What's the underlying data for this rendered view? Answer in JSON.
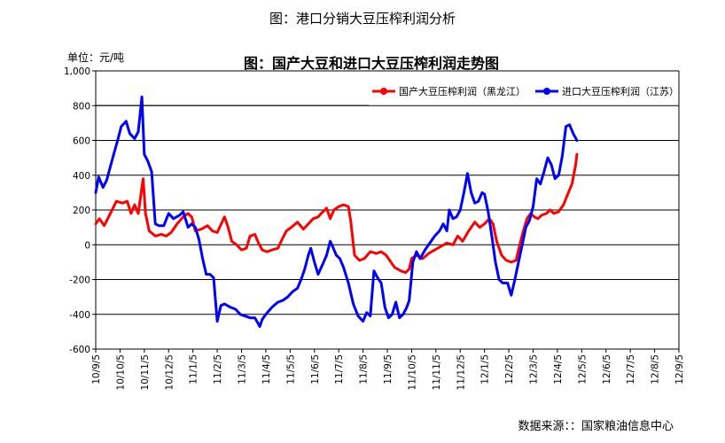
{
  "figure_title": "图：港口分销大豆压榨利润分析",
  "unit_label": "单位：元/吨",
  "source_note": "数据来源：：国家粮油信息中心",
  "chart_data": {
    "type": "line",
    "title": "图：国产大豆和进口大豆压榨利润走势图",
    "ylim": [
      -600,
      1000
    ],
    "yticks": [
      -600,
      -400,
      -200,
      0,
      200,
      400,
      600,
      800,
      1000
    ],
    "ytick_labels": [
      "-600",
      "-400",
      "-200",
      "0",
      "200",
      "400",
      "600",
      "800",
      "1,000"
    ],
    "x_tick_labels": [
      "10/9/5",
      "10/10/5",
      "10/11/5",
      "10/12/5",
      "11/1/5",
      "11/2/5",
      "11/3/5",
      "11/4/5",
      "11/5/5",
      "11/6/5",
      "11/7/5",
      "11/8/5",
      "11/9/5",
      "11/10/5",
      "11/11/5",
      "11/12/5",
      "12/1/5",
      "12/2/5",
      "12/3/5",
      "12/4/5",
      "12/5/5",
      "12/6/5",
      "12/7/5",
      "12/8/5",
      "12/9/5"
    ],
    "grid": true,
    "legend_position": "top-right",
    "series": [
      {
        "name": "国产大豆压榨利润（黑龙江）",
        "color": "#ff0000",
        "values": [
          [
            0,
            120
          ],
          [
            0.15,
            150
          ],
          [
            0.35,
            110
          ],
          [
            0.6,
            180
          ],
          [
            0.85,
            250
          ],
          [
            1.1,
            240
          ],
          [
            1.3,
            250
          ],
          [
            1.45,
            180
          ],
          [
            1.6,
            230
          ],
          [
            1.75,
            180
          ],
          [
            1.95,
            380
          ],
          [
            2.05,
            180
          ],
          [
            2.2,
            80
          ],
          [
            2.45,
            50
          ],
          [
            2.7,
            60
          ],
          [
            2.9,
            50
          ],
          [
            3.1,
            70
          ],
          [
            3.35,
            120
          ],
          [
            3.6,
            160
          ],
          [
            3.8,
            180
          ],
          [
            3.95,
            160
          ],
          [
            4.1,
            80
          ],
          [
            4.35,
            90
          ],
          [
            4.6,
            110
          ],
          [
            4.8,
            80
          ],
          [
            5.0,
            70
          ],
          [
            5.1,
            100
          ],
          [
            5.3,
            160
          ],
          [
            5.45,
            100
          ],
          [
            5.6,
            20
          ],
          [
            5.8,
            0
          ],
          [
            6.0,
            -30
          ],
          [
            6.2,
            -20
          ],
          [
            6.35,
            50
          ],
          [
            6.55,
            60
          ],
          [
            6.7,
            10
          ],
          [
            6.85,
            -30
          ],
          [
            7.05,
            -40
          ],
          [
            7.25,
            -30
          ],
          [
            7.5,
            -20
          ],
          [
            7.7,
            40
          ],
          [
            7.85,
            80
          ],
          [
            8.05,
            100
          ],
          [
            8.3,
            130
          ],
          [
            8.55,
            90
          ],
          [
            8.75,
            120
          ],
          [
            8.95,
            150
          ],
          [
            9.15,
            160
          ],
          [
            9.35,
            190
          ],
          [
            9.5,
            210
          ],
          [
            9.65,
            150
          ],
          [
            9.8,
            200
          ],
          [
            10.0,
            220
          ],
          [
            10.2,
            230
          ],
          [
            10.4,
            220
          ],
          [
            10.5,
            130
          ],
          [
            10.65,
            -60
          ],
          [
            10.85,
            -90
          ],
          [
            11.05,
            -80
          ],
          [
            11.3,
            -40
          ],
          [
            11.55,
            -50
          ],
          [
            11.75,
            -40
          ],
          [
            11.95,
            -60
          ],
          [
            12.1,
            -90
          ],
          [
            12.3,
            -130
          ],
          [
            12.55,
            -150
          ],
          [
            12.75,
            -160
          ],
          [
            12.9,
            -140
          ],
          [
            13.0,
            -80
          ],
          [
            13.2,
            -60
          ],
          [
            13.45,
            -80
          ],
          [
            13.7,
            -50
          ],
          [
            13.95,
            -30
          ],
          [
            14.2,
            -10
          ],
          [
            14.45,
            10
          ],
          [
            14.7,
            0
          ],
          [
            14.9,
            50
          ],
          [
            15.1,
            20
          ],
          [
            15.35,
            80
          ],
          [
            15.6,
            130
          ],
          [
            15.8,
            100
          ],
          [
            16.0,
            120
          ],
          [
            16.2,
            150
          ],
          [
            16.35,
            120
          ],
          [
            16.5,
            20
          ],
          [
            16.7,
            -60
          ],
          [
            16.9,
            -90
          ],
          [
            17.1,
            -100
          ],
          [
            17.3,
            -90
          ],
          [
            17.45,
            0
          ],
          [
            17.6,
            80
          ],
          [
            17.75,
            150
          ],
          [
            17.9,
            180
          ],
          [
            18.05,
            160
          ],
          [
            18.2,
            150
          ],
          [
            18.35,
            170
          ],
          [
            18.55,
            180
          ],
          [
            18.7,
            200
          ],
          [
            18.85,
            180
          ],
          [
            19.05,
            190
          ],
          [
            19.25,
            230
          ],
          [
            19.45,
            300
          ],
          [
            19.6,
            350
          ],
          [
            19.75,
            460
          ],
          [
            19.8,
            520
          ]
        ]
      },
      {
        "name": "进口大豆压榨利润（江苏）",
        "color": "#0000ff",
        "values": [
          [
            0,
            300
          ],
          [
            0.12,
            390
          ],
          [
            0.3,
            330
          ],
          [
            0.45,
            370
          ],
          [
            0.7,
            500
          ],
          [
            0.9,
            600
          ],
          [
            1.05,
            680
          ],
          [
            1.25,
            710
          ],
          [
            1.4,
            640
          ],
          [
            1.6,
            610
          ],
          [
            1.75,
            650
          ],
          [
            1.9,
            850
          ],
          [
            2.0,
            520
          ],
          [
            2.15,
            480
          ],
          [
            2.3,
            420
          ],
          [
            2.45,
            120
          ],
          [
            2.6,
            110
          ],
          [
            2.8,
            110
          ],
          [
            3.0,
            180
          ],
          [
            3.2,
            150
          ],
          [
            3.45,
            170
          ],
          [
            3.6,
            190
          ],
          [
            3.8,
            100
          ],
          [
            3.95,
            120
          ],
          [
            4.1,
            100
          ],
          [
            4.25,
            30
          ],
          [
            4.4,
            -80
          ],
          [
            4.55,
            -170
          ],
          [
            4.7,
            -170
          ],
          [
            4.85,
            -190
          ],
          [
            5.0,
            -440
          ],
          [
            5.15,
            -350
          ],
          [
            5.3,
            -340
          ],
          [
            5.55,
            -360
          ],
          [
            5.75,
            -370
          ],
          [
            5.95,
            -400
          ],
          [
            6.15,
            -410
          ],
          [
            6.35,
            -420
          ],
          [
            6.55,
            -420
          ],
          [
            6.75,
            -470
          ],
          [
            6.85,
            -430
          ],
          [
            7.0,
            -400
          ],
          [
            7.25,
            -360
          ],
          [
            7.5,
            -330
          ],
          [
            7.7,
            -320
          ],
          [
            7.9,
            -300
          ],
          [
            8.1,
            -270
          ],
          [
            8.3,
            -250
          ],
          [
            8.45,
            -200
          ],
          [
            8.6,
            -140
          ],
          [
            8.75,
            -60
          ],
          [
            8.85,
            -20
          ],
          [
            9.0,
            -100
          ],
          [
            9.15,
            -170
          ],
          [
            9.35,
            -110
          ],
          [
            9.5,
            -60
          ],
          [
            9.65,
            20
          ],
          [
            9.75,
            -10
          ],
          [
            9.9,
            -60
          ],
          [
            10.05,
            -80
          ],
          [
            10.2,
            -130
          ],
          [
            10.4,
            -220
          ],
          [
            10.6,
            -340
          ],
          [
            10.8,
            -410
          ],
          [
            11.0,
            -440
          ],
          [
            11.15,
            -390
          ],
          [
            11.3,
            -410
          ],
          [
            11.45,
            -150
          ],
          [
            11.6,
            -190
          ],
          [
            11.75,
            -220
          ],
          [
            11.9,
            -360
          ],
          [
            12.05,
            -420
          ],
          [
            12.2,
            -400
          ],
          [
            12.35,
            -330
          ],
          [
            12.5,
            -420
          ],
          [
            12.65,
            -400
          ],
          [
            12.8,
            -360
          ],
          [
            12.9,
            -320
          ],
          [
            13.05,
            -100
          ],
          [
            13.2,
            -40
          ],
          [
            13.35,
            -80
          ],
          [
            13.55,
            -30
          ],
          [
            13.75,
            10
          ],
          [
            13.95,
            50
          ],
          [
            14.15,
            80
          ],
          [
            14.3,
            120
          ],
          [
            14.45,
            80
          ],
          [
            14.55,
            200
          ],
          [
            14.7,
            150
          ],
          [
            14.85,
            160
          ],
          [
            15.0,
            200
          ],
          [
            15.15,
            300
          ],
          [
            15.3,
            410
          ],
          [
            15.45,
            300
          ],
          [
            15.6,
            240
          ],
          [
            15.75,
            250
          ],
          [
            15.9,
            300
          ],
          [
            16.0,
            290
          ],
          [
            16.15,
            190
          ],
          [
            16.3,
            50
          ],
          [
            16.45,
            -100
          ],
          [
            16.6,
            -200
          ],
          [
            16.75,
            -220
          ],
          [
            16.95,
            -220
          ],
          [
            17.1,
            -290
          ],
          [
            17.25,
            -200
          ],
          [
            17.4,
            -100
          ],
          [
            17.55,
            0
          ],
          [
            17.7,
            100
          ],
          [
            17.85,
            140
          ],
          [
            18.0,
            220
          ],
          [
            18.15,
            380
          ],
          [
            18.3,
            350
          ],
          [
            18.45,
            420
          ],
          [
            18.6,
            500
          ],
          [
            18.75,
            460
          ],
          [
            18.9,
            380
          ],
          [
            19.05,
            400
          ],
          [
            19.2,
            510
          ],
          [
            19.35,
            680
          ],
          [
            19.5,
            690
          ],
          [
            19.65,
            640
          ],
          [
            19.8,
            600
          ]
        ]
      }
    ]
  }
}
